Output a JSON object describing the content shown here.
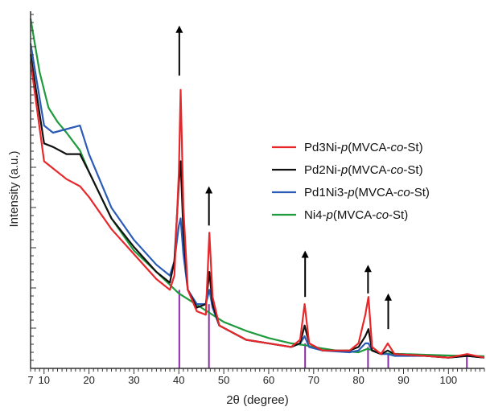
{
  "chart_data": {
    "type": "line",
    "xlabel": "2θ (degree)",
    "ylabel": "Intensity (a.u.)",
    "xlim": [
      7,
      108
    ],
    "ylim": [
      0,
      100
    ],
    "x_tick_labels": [
      "7",
      "10",
      "20",
      "30",
      "40",
      "50",
      "60",
      "70",
      "80",
      "90",
      "100"
    ],
    "x_tick_values": [
      7,
      10,
      20,
      30,
      40,
      50,
      60,
      70,
      80,
      90,
      100
    ],
    "grid": false,
    "legend_position": "right",
    "series": [
      {
        "name": "Pd3Ni-p(MVCA-co-St)",
        "color": "#e8272a",
        "x": [
          7,
          10,
          12,
          15,
          18,
          20,
          25,
          30,
          35,
          38,
          39,
          40,
          40.4,
          41,
          42,
          44,
          46,
          46.8,
          47.5,
          49,
          55,
          60,
          65,
          67,
          68,
          69,
          72,
          78,
          80,
          81.5,
          82.2,
          83,
          85,
          86.5,
          88,
          95,
          100,
          104.2,
          108
        ],
        "y": [
          86,
          58,
          56,
          53,
          51,
          48,
          39,
          32,
          25,
          22,
          26,
          55,
          78,
          45,
          22,
          16,
          15,
          38,
          20,
          12,
          8,
          7,
          6,
          8,
          18,
          7,
          5,
          5,
          7,
          15,
          20,
          6,
          4,
          7,
          4,
          3.5,
          3,
          4,
          3
        ]
      },
      {
        "name": "Pd2Ni-p(MVCA-co-St)",
        "color": "#111111",
        "x": [
          7,
          10,
          12,
          15,
          18,
          20,
          25,
          30,
          35,
          38,
          39,
          40,
          40.4,
          41,
          42,
          44,
          46,
          46.8,
          47.5,
          49,
          55,
          60,
          65,
          67,
          68,
          69,
          72,
          78,
          80,
          81.5,
          82.2,
          83,
          85,
          86.5,
          88,
          95,
          100,
          104.2,
          108
        ],
        "y": [
          88,
          63,
          62,
          60,
          60,
          55,
          42,
          34,
          27,
          24,
          30,
          52,
          58,
          38,
          22,
          17,
          18,
          27,
          18,
          12,
          8,
          7,
          6,
          7,
          12,
          7,
          5,
          5,
          6,
          9,
          11,
          5,
          4,
          5,
          4,
          3.5,
          3,
          3.5,
          3
        ]
      },
      {
        "name": "Pd1Ni3-p(MVCA-co-St)",
        "color": "#2b5bb8",
        "x": [
          7,
          10,
          12,
          15,
          18,
          20,
          25,
          30,
          35,
          38,
          39,
          40,
          40.4,
          41,
          42,
          44,
          46,
          46.8,
          47.5,
          49,
          55,
          60,
          65,
          67,
          68,
          69,
          72,
          78,
          80,
          81.5,
          82.2,
          83,
          85,
          86.5,
          88,
          95,
          100,
          104.2,
          108
        ],
        "y": [
          91,
          68,
          66,
          67,
          68,
          60,
          45,
          36,
          29,
          26,
          30,
          40,
          42,
          32,
          22,
          18,
          18,
          22,
          17,
          12,
          8,
          7,
          6,
          7,
          9,
          6,
          5,
          4.5,
          5,
          7,
          7,
          5,
          4,
          4,
          3.5,
          3.5,
          3,
          3.5,
          3
        ]
      },
      {
        "name": "Ni4-p(MVCA-co-St)",
        "color": "#1f9a3c",
        "x": [
          7,
          9,
          11,
          13,
          15,
          18,
          20,
          25,
          30,
          35,
          40,
          45,
          50,
          55,
          60,
          65,
          68,
          70,
          75,
          80,
          82,
          85,
          90,
          95,
          100,
          104,
          108
        ],
        "y": [
          98,
          83,
          73,
          69,
          66,
          61,
          55,
          42,
          33,
          27,
          21,
          17,
          13,
          10.5,
          8.5,
          7,
          6.5,
          6,
          5,
          4.5,
          5.5,
          4.2,
          4,
          3.8,
          3.6,
          3.5,
          3.4
        ]
      }
    ],
    "reference_lines": {
      "color": "#8a2aa8",
      "x": [
        40.1,
        46.7,
        68.1,
        82.1,
        86.6,
        104.1
      ],
      "heights": [
        22,
        18,
        7,
        6,
        4,
        4
      ]
    },
    "arrows": {
      "color": "#000000",
      "x": [
        40.1,
        46.7,
        68.1,
        82.1,
        86.6
      ],
      "y_start": [
        82,
        40,
        20,
        21,
        11
      ],
      "y_end": [
        96,
        51,
        33,
        29,
        21
      ]
    }
  }
}
